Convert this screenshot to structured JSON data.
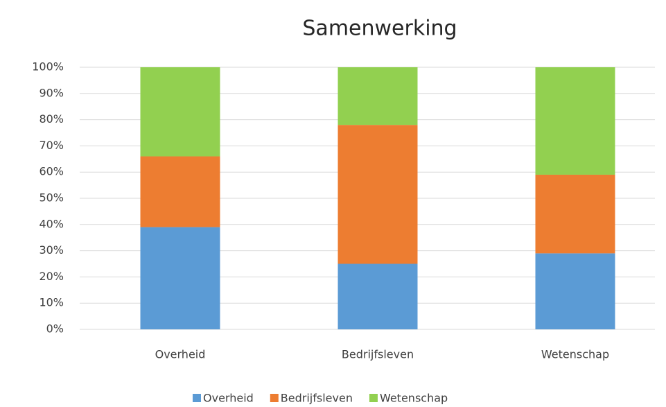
{
  "chart_data": {
    "type": "stacked_bar",
    "title": "Samenwerking",
    "categories": [
      "Overheid",
      "Bedrijfsleven",
      "Wetenschap"
    ],
    "series": [
      {
        "name": "Overheid",
        "color": "#5b9bd5",
        "values": [
          39,
          25,
          29
        ]
      },
      {
        "name": "Bedrijfsleven",
        "color": "#ed7d31",
        "values": [
          27,
          53,
          30
        ]
      },
      {
        "name": "Wetenschap",
        "color": "#92d050",
        "values": [
          34,
          22,
          41
        ]
      }
    ],
    "ylim": [
      0,
      100
    ],
    "yticks": [
      {
        "value": 0,
        "label": "0%"
      },
      {
        "value": 10,
        "label": "10%"
      },
      {
        "value": 20,
        "label": "20%"
      },
      {
        "value": 30,
        "label": "30%"
      },
      {
        "value": 40,
        "label": "40%"
      },
      {
        "value": 50,
        "label": "50%"
      },
      {
        "value": 60,
        "label": "60%"
      },
      {
        "value": 70,
        "label": "70%"
      },
      {
        "value": 80,
        "label": "80%"
      },
      {
        "value": 90,
        "label": "90%"
      },
      {
        "value": 100,
        "label": "100%"
      }
    ],
    "grid": true,
    "legend": "bottom"
  }
}
